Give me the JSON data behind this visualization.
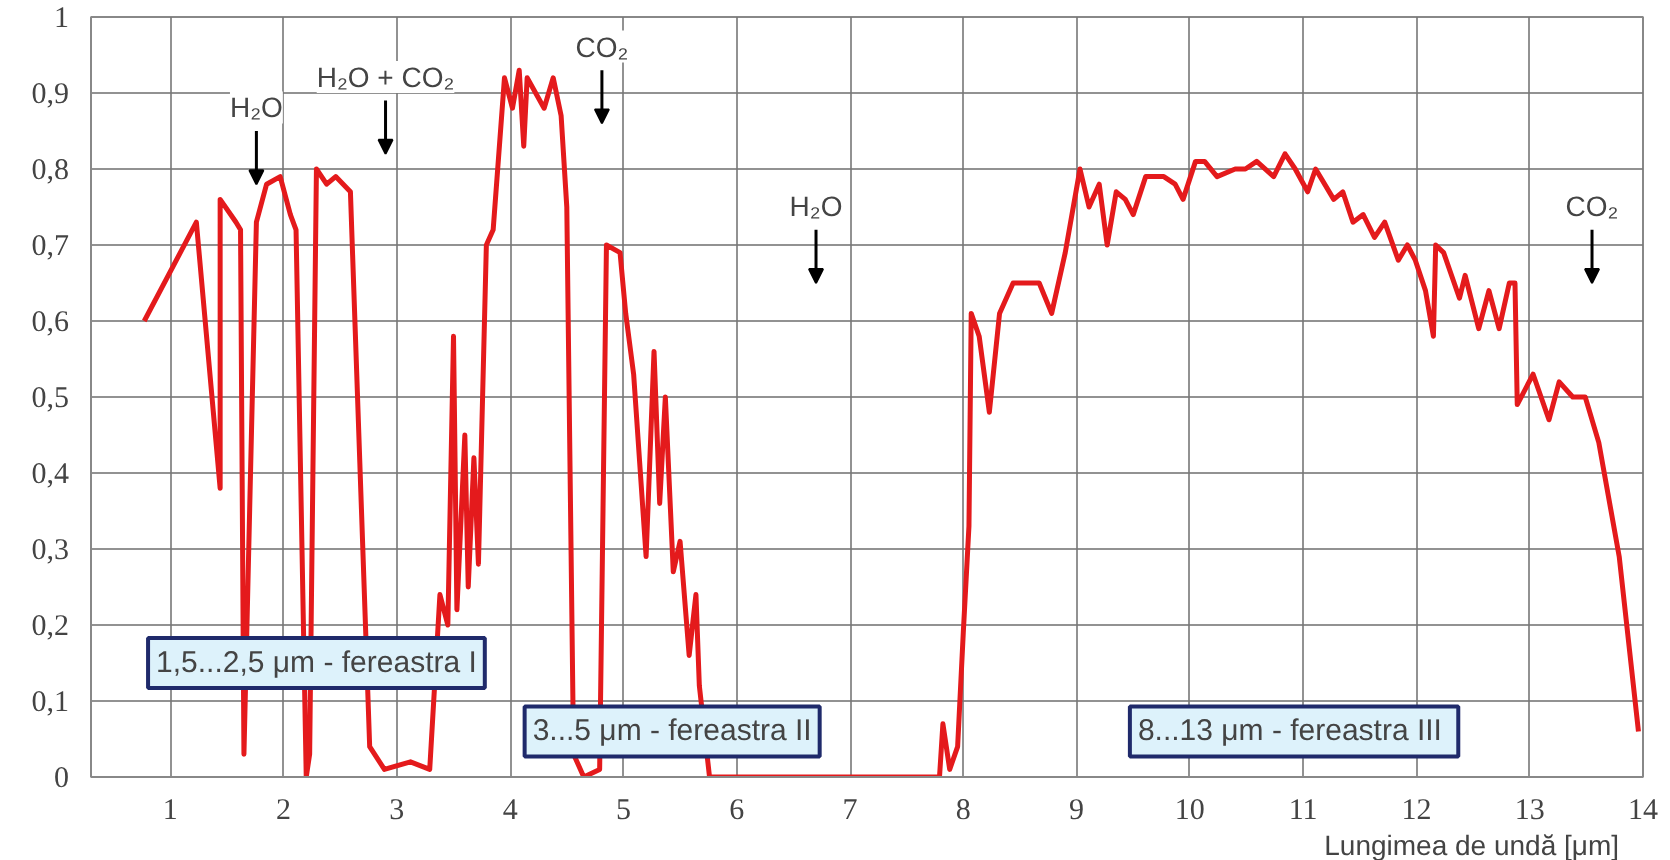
{
  "chart_data": {
    "type": "line",
    "xlabel": "Lungimea de undă [μm]",
    "xlim": [
      0.3,
      14.0
    ],
    "xticks": [
      1,
      2,
      3,
      4,
      5,
      6,
      7,
      8,
      9,
      10,
      11,
      12,
      13,
      14
    ],
    "ylim": [
      0,
      1
    ],
    "yticks": [
      0,
      {
        "value": 0.1,
        "label": "0,1"
      },
      {
        "value": 0.2,
        "label": "0,2"
      },
      {
        "value": 0.3,
        "label": "0,3"
      },
      {
        "value": 0.4,
        "label": "0,4"
      },
      {
        "value": 0.5,
        "label": "0,5"
      },
      {
        "value": 0.6,
        "label": "0,6"
      },
      {
        "value": 0.7,
        "label": "0,7"
      },
      {
        "value": 0.8,
        "label": "0,8"
      },
      {
        "value": 0.9,
        "label": "0,9"
      },
      1
    ],
    "grid": true,
    "marker": "none",
    "line_style": "solid",
    "series": [
      {
        "color": "#e41a1c",
        "x": [
          0.77,
          1.23,
          1.44,
          1.44,
          1.58,
          1.62,
          1.65,
          1.76,
          1.85,
          1.97,
          2.06,
          2.11,
          2.2,
          2.23,
          2.29,
          2.38,
          2.46,
          2.59,
          2.76,
          2.89,
          3.12,
          3.29,
          3.38,
          3.45,
          3.5,
          3.53,
          3.6,
          3.63,
          3.68,
          3.72,
          3.79,
          3.85,
          3.95,
          4.02,
          4.08,
          4.12,
          4.15,
          4.3,
          4.38,
          4.45,
          4.5,
          4.56,
          4.65,
          4.79,
          4.85,
          4.97,
          5.02,
          5.09,
          5.2,
          5.27,
          5.32,
          5.37,
          5.44,
          5.5,
          5.58,
          5.64,
          5.67,
          5.76,
          7.79,
          7.82,
          7.88,
          7.95,
          8.0,
          8.05,
          8.07,
          8.14,
          8.23,
          8.32,
          8.44,
          8.58,
          8.67,
          8.78,
          8.9,
          9.03,
          9.11,
          9.2,
          9.27,
          9.35,
          9.43,
          9.5,
          9.61,
          9.77,
          9.87,
          9.94,
          10.05,
          10.13,
          10.24,
          10.4,
          10.49,
          10.59,
          10.74,
          10.84,
          10.93,
          11.04,
          11.11,
          11.27,
          11.35,
          11.44,
          11.53,
          11.63,
          11.72,
          11.84,
          11.92,
          11.99,
          12.08,
          12.15,
          12.17,
          12.24,
          12.38,
          12.43,
          12.55,
          12.64,
          12.73,
          12.82,
          12.87,
          12.89,
          13.03,
          13.17,
          13.26,
          13.38,
          13.49,
          13.61,
          13.79,
          13.96
        ],
        "values": [
          0.6,
          0.73,
          0.38,
          0.76,
          0.73,
          0.72,
          0.03,
          0.73,
          0.78,
          0.79,
          0.74,
          0.72,
          0.0,
          0.03,
          0.8,
          0.78,
          0.79,
          0.77,
          0.04,
          0.01,
          0.02,
          0.01,
          0.24,
          0.2,
          0.58,
          0.22,
          0.45,
          0.25,
          0.42,
          0.28,
          0.7,
          0.72,
          0.92,
          0.88,
          0.93,
          0.83,
          0.92,
          0.88,
          0.92,
          0.87,
          0.75,
          0.03,
          0.0,
          0.01,
          0.7,
          0.69,
          0.61,
          0.53,
          0.29,
          0.56,
          0.36,
          0.5,
          0.27,
          0.31,
          0.16,
          0.24,
          0.12,
          0.0,
          0.0,
          0.07,
          0.01,
          0.04,
          0.19,
          0.33,
          0.61,
          0.58,
          0.48,
          0.61,
          0.65,
          0.65,
          0.65,
          0.61,
          0.69,
          0.8,
          0.75,
          0.78,
          0.7,
          0.77,
          0.76,
          0.74,
          0.79,
          0.79,
          0.78,
          0.76,
          0.81,
          0.81,
          0.79,
          0.8,
          0.8,
          0.81,
          0.79,
          0.82,
          0.8,
          0.77,
          0.8,
          0.76,
          0.77,
          0.73,
          0.74,
          0.71,
          0.73,
          0.68,
          0.7,
          0.68,
          0.64,
          0.58,
          0.7,
          0.69,
          0.63,
          0.66,
          0.59,
          0.64,
          0.59,
          0.65,
          0.65,
          0.49,
          0.53,
          0.47,
          0.52,
          0.5,
          0.5,
          0.44,
          0.29,
          0.06
        ]
      }
    ],
    "annotations": [
      {
        "text": "H₂O",
        "x": 1.76,
        "y": 0.78
      },
      "H₂O + CO₂",
      "CO₂",
      "H₂O",
      "CO₂",
      "1,5...2,5 μm - fereastra I",
      "3...5 μm - fereastra II",
      "8...13 μm -  fereastra III"
    ]
  }
}
